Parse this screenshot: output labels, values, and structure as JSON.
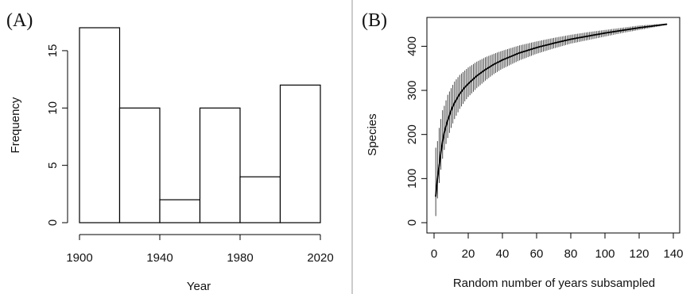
{
  "panels": {
    "a": {
      "label": "(A)"
    },
    "b": {
      "label": "(B)"
    }
  },
  "chart_data": [
    {
      "type": "bar",
      "panel": "(A)",
      "title": "",
      "xlabel": "Year",
      "ylabel": "Frequency",
      "bins": [
        {
          "start": 1900,
          "end": 1920,
          "count": 17
        },
        {
          "start": 1920,
          "end": 1940,
          "count": 10
        },
        {
          "start": 1940,
          "end": 1960,
          "count": 2
        },
        {
          "start": 1960,
          "end": 1980,
          "count": 10
        },
        {
          "start": 1980,
          "end": 2000,
          "count": 4
        },
        {
          "start": 2000,
          "end": 2020,
          "count": 12
        }
      ],
      "xlim": [
        1900,
        2020
      ],
      "ylim": [
        0,
        17
      ],
      "xticks": [
        1900,
        1940,
        1980,
        2020
      ],
      "yticks": [
        0,
        5,
        10,
        15
      ],
      "grid": false
    },
    {
      "type": "line",
      "panel": "(B)",
      "title": "",
      "xlabel": "Random number of years subsampled",
      "ylabel": "Species",
      "xlim": [
        0,
        140
      ],
      "ylim": [
        0,
        460
      ],
      "xticks": [
        0,
        20,
        40,
        60,
        80,
        100,
        120,
        140
      ],
      "yticks": [
        0,
        100,
        200,
        300,
        400
      ],
      "grid": false,
      "error_bars": true,
      "points": [
        {
          "x": 1,
          "y": 60,
          "lo": 15,
          "hi": 170
        },
        {
          "x": 2,
          "y": 100,
          "lo": 55,
          "hi": 185
        },
        {
          "x": 3,
          "y": 130,
          "lo": 90,
          "hi": 215
        },
        {
          "x": 4,
          "y": 160,
          "lo": 120,
          "hi": 235
        },
        {
          "x": 5,
          "y": 185,
          "lo": 145,
          "hi": 255
        },
        {
          "x": 6,
          "y": 205,
          "lo": 165,
          "hi": 265
        },
        {
          "x": 8,
          "y": 232,
          "lo": 192,
          "hi": 290
        },
        {
          "x": 10,
          "y": 255,
          "lo": 215,
          "hi": 305
        },
        {
          "x": 12,
          "y": 272,
          "lo": 235,
          "hi": 320
        },
        {
          "x": 15,
          "y": 292,
          "lo": 258,
          "hi": 335
        },
        {
          "x": 18,
          "y": 307,
          "lo": 275,
          "hi": 345
        },
        {
          "x": 20,
          "y": 315,
          "lo": 285,
          "hi": 352
        },
        {
          "x": 25,
          "y": 333,
          "lo": 305,
          "hi": 365
        },
        {
          "x": 30,
          "y": 347,
          "lo": 322,
          "hi": 375
        },
        {
          "x": 35,
          "y": 359,
          "lo": 337,
          "hi": 383
        },
        {
          "x": 40,
          "y": 369,
          "lo": 349,
          "hi": 390
        },
        {
          "x": 50,
          "y": 385,
          "lo": 368,
          "hi": 402
        },
        {
          "x": 60,
          "y": 397,
          "lo": 383,
          "hi": 411
        },
        {
          "x": 70,
          "y": 407,
          "lo": 395,
          "hi": 419
        },
        {
          "x": 80,
          "y": 416,
          "lo": 406,
          "hi": 426
        },
        {
          "x": 90,
          "y": 423,
          "lo": 414,
          "hi": 432
        },
        {
          "x": 100,
          "y": 430,
          "lo": 422,
          "hi": 437
        },
        {
          "x": 110,
          "y": 436,
          "lo": 430,
          "hi": 442
        },
        {
          "x": 120,
          "y": 442,
          "lo": 437,
          "hi": 447
        },
        {
          "x": 130,
          "y": 447,
          "lo": 444,
          "hi": 450
        },
        {
          "x": 136,
          "y": 450,
          "lo": 448,
          "hi": 451
        }
      ]
    }
  ]
}
